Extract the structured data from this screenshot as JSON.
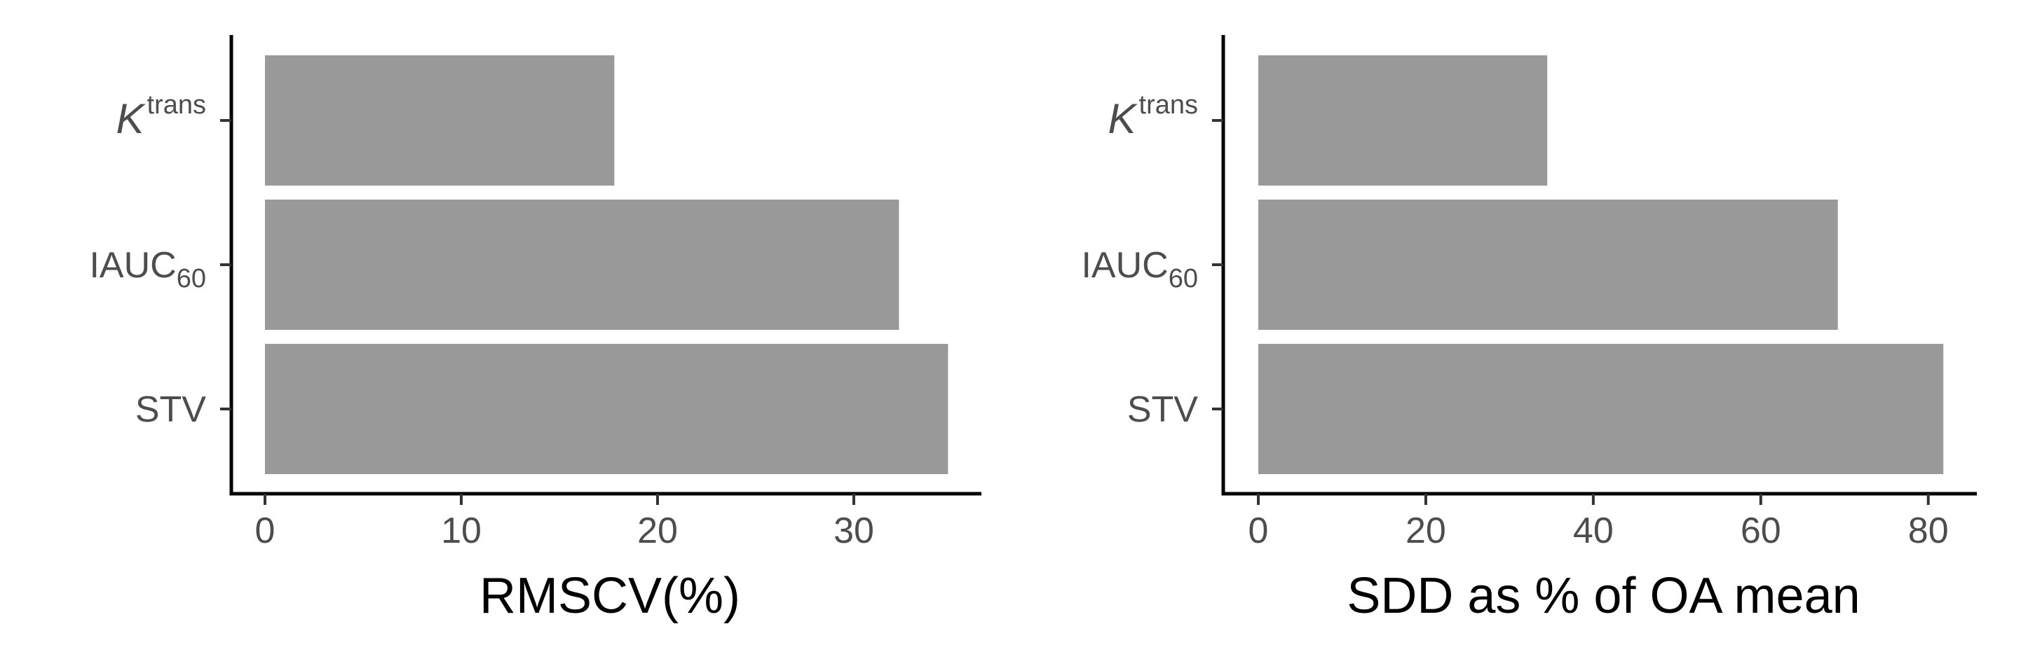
{
  "chart_data": [
    {
      "type": "bar",
      "orientation": "horizontal",
      "categories": [
        {
          "main": "K",
          "sup": "trans",
          "sub": "",
          "italic": true
        },
        {
          "main": "IAUC",
          "sup": "",
          "sub": "60",
          "italic": false
        },
        {
          "main": "STV",
          "sup": "",
          "sub": "",
          "italic": false
        }
      ],
      "values": [
        17.8,
        32.3,
        34.8
      ],
      "xlabel": "RMSCV(%)",
      "ylabel": "",
      "xlim": [
        0,
        36.5
      ],
      "xticks": [
        0,
        10,
        20,
        30
      ],
      "bar_color": "#999999",
      "grid": false
    },
    {
      "type": "bar",
      "orientation": "horizontal",
      "categories": [
        {
          "main": "K",
          "sup": "trans",
          "sub": "",
          "italic": true
        },
        {
          "main": "IAUC",
          "sup": "",
          "sub": "60",
          "italic": false
        },
        {
          "main": "STV",
          "sup": "",
          "sub": "",
          "italic": false
        }
      ],
      "values": [
        34.5,
        69.2,
        81.8
      ],
      "xlabel": "SDD as % of OA mean",
      "ylabel": "",
      "xlim": [
        0,
        85.8
      ],
      "xticks": [
        0,
        20,
        40,
        60,
        80
      ],
      "bar_color": "#999999",
      "grid": false
    }
  ]
}
